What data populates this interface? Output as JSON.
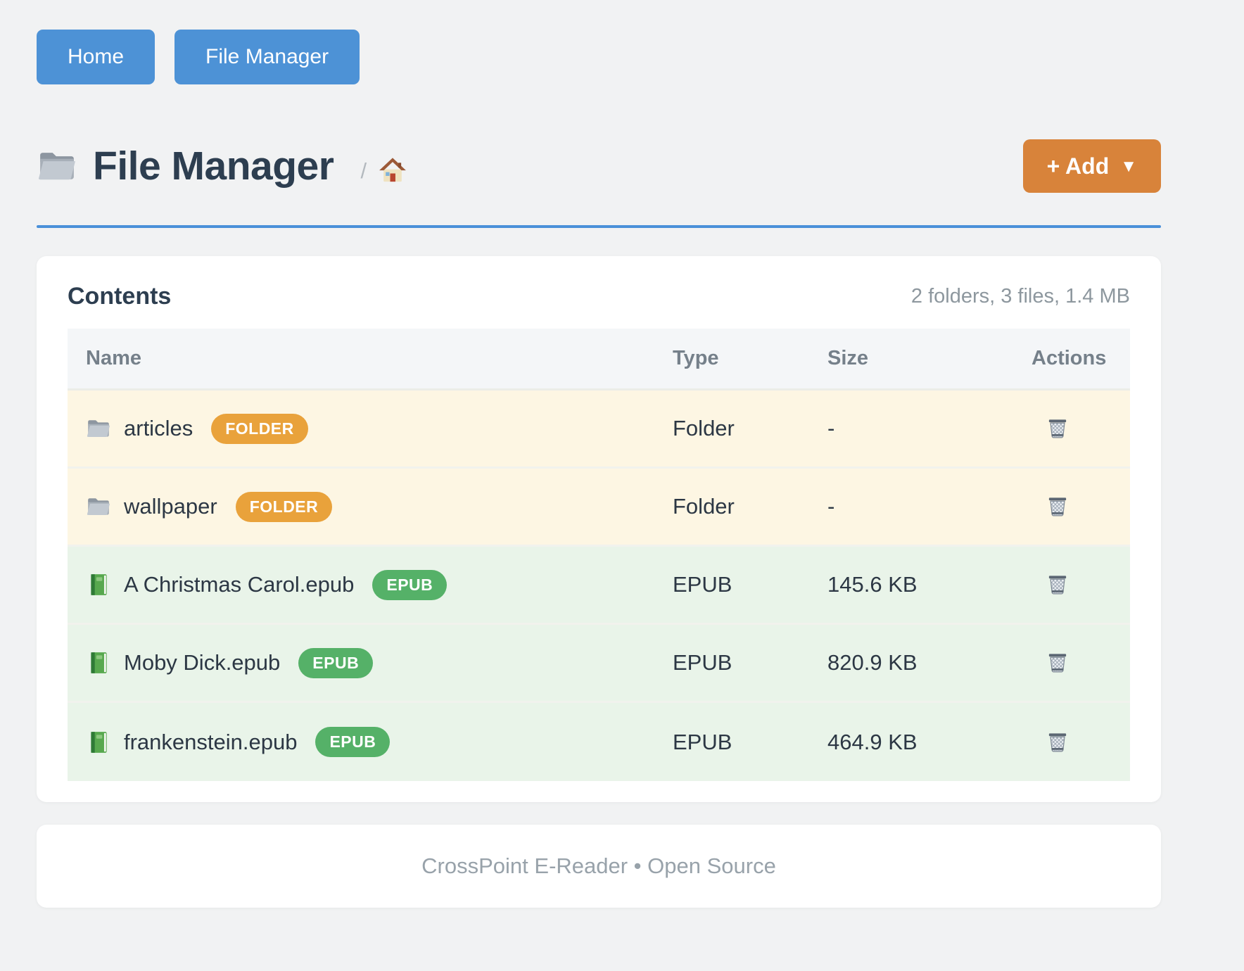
{
  "colors": {
    "accent_blue": "#4d92d6",
    "rule_blue": "#4a90d9",
    "accent_orange": "#d8833a",
    "page_bg": "#f1f2f3",
    "badge": {
      "folder": "#e9a23b",
      "epub": "#55b168"
    },
    "row_bg": {
      "folder": "#fdf6e3",
      "epub": "#e9f4e9"
    }
  },
  "nav": {
    "home_label": "Home",
    "file_manager_label": "File Manager"
  },
  "header": {
    "title": "File Manager",
    "title_icon": "folder-icon",
    "breadcrumb_separator": "/",
    "breadcrumb_home_icon": "home-icon",
    "add_button_label": "+ Add",
    "add_button_caret": "▼"
  },
  "contents": {
    "title": "Contents",
    "summary": "2 folders, 3 files, 1.4 MB",
    "columns": {
      "name": "Name",
      "type": "Type",
      "size": "Size",
      "actions": "Actions"
    },
    "rows": [
      {
        "icon": "folder-icon",
        "name": "articles",
        "badge": "FOLDER",
        "kind": "folder",
        "type": "Folder",
        "size": "-",
        "action_icon": "trash-icon"
      },
      {
        "icon": "folder-icon",
        "name": "wallpaper",
        "badge": "FOLDER",
        "kind": "folder",
        "type": "Folder",
        "size": "-",
        "action_icon": "trash-icon"
      },
      {
        "icon": "book-icon",
        "name": "A Christmas Carol.epub",
        "badge": "EPUB",
        "kind": "epub",
        "type": "EPUB",
        "size": "145.6 KB",
        "action_icon": "trash-icon"
      },
      {
        "icon": "book-icon",
        "name": "Moby Dick.epub",
        "badge": "EPUB",
        "kind": "epub",
        "type": "EPUB",
        "size": "820.9 KB",
        "action_icon": "trash-icon"
      },
      {
        "icon": "book-icon",
        "name": "frankenstein.epub",
        "badge": "EPUB",
        "kind": "epub",
        "type": "EPUB",
        "size": "464.9 KB",
        "action_icon": "trash-icon"
      }
    ]
  },
  "footer": {
    "text": "CrossPoint E-Reader • Open Source"
  }
}
